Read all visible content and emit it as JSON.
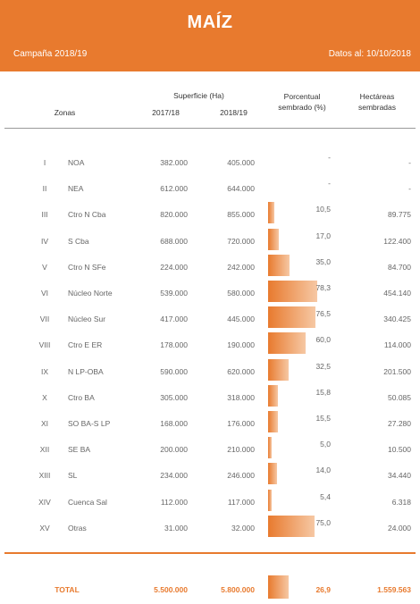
{
  "header": {
    "title": "MAÍZ",
    "campaign": "Campaña 2018/19",
    "date": "Datos al: 10/10/2018"
  },
  "columns": {
    "zonas": "Zonas",
    "superficie": "Superficie (Ha)",
    "y1": "2017/18",
    "y2": "2018/19",
    "pct_line1": "Porcentual",
    "pct_line2": "sembrado (%)",
    "ha_line1": "Hectáreas",
    "ha_line2": "sembradas"
  },
  "rows": [
    {
      "num": "I",
      "zone": "NOA",
      "s1718": "382.000",
      "s1819": "405.000",
      "pct": "-",
      "pct_value": 0,
      "ha": "-"
    },
    {
      "num": "II",
      "zone": "NEA",
      "s1718": "612.000",
      "s1819": "644.000",
      "pct": "-",
      "pct_value": 0,
      "ha": "-"
    },
    {
      "num": "III",
      "zone": "Ctro N Cba",
      "s1718": "820.000",
      "s1819": "855.000",
      "pct": "10,5",
      "pct_value": 10.5,
      "ha": "89.775"
    },
    {
      "num": "IV",
      "zone": "S Cba",
      "s1718": "688.000",
      "s1819": "720.000",
      "pct": "17,0",
      "pct_value": 17.0,
      "ha": "122.400"
    },
    {
      "num": "V",
      "zone": "Ctro N SFe",
      "s1718": "224.000",
      "s1819": "242.000",
      "pct": "35,0",
      "pct_value": 35.0,
      "ha": "84.700"
    },
    {
      "num": "VI",
      "zone": "Núcleo Norte",
      "s1718": "539.000",
      "s1819": "580.000",
      "pct": "78,3",
      "pct_value": 78.3,
      "ha": "454.140"
    },
    {
      "num": "VII",
      "zone": "Núcleo Sur",
      "s1718": "417.000",
      "s1819": "445.000",
      "pct": "76,5",
      "pct_value": 76.5,
      "ha": "340.425"
    },
    {
      "num": "VIII",
      "zone": "Ctro E ER",
      "s1718": "178.000",
      "s1819": "190.000",
      "pct": "60,0",
      "pct_value": 60.0,
      "ha": "114.000"
    },
    {
      "num": "IX",
      "zone": "N LP-OBA",
      "s1718": "590.000",
      "s1819": "620.000",
      "pct": "32,5",
      "pct_value": 32.5,
      "ha": "201.500"
    },
    {
      "num": "X",
      "zone": "Ctro BA",
      "s1718": "305.000",
      "s1819": "318.000",
      "pct": "15,8",
      "pct_value": 15.8,
      "ha": "50.085"
    },
    {
      "num": "XI",
      "zone": "SO BA-S LP",
      "s1718": "168.000",
      "s1819": "176.000",
      "pct": "15,5",
      "pct_value": 15.5,
      "ha": "27.280"
    },
    {
      "num": "XII",
      "zone": "SE BA",
      "s1718": "200.000",
      "s1819": "210.000",
      "pct": "5,0",
      "pct_value": 5.0,
      "ha": "10.500"
    },
    {
      "num": "XIII",
      "zone": "SL",
      "s1718": "234.000",
      "s1819": "246.000",
      "pct": "14,0",
      "pct_value": 14.0,
      "ha": "34.440"
    },
    {
      "num": "XIV",
      "zone": "Cuenca Sal",
      "s1718": "112.000",
      "s1819": "117.000",
      "pct": "5,4",
      "pct_value": 5.4,
      "ha": "6.318"
    },
    {
      "num": "XV",
      "zone": "Otras",
      "s1718": "31.000",
      "s1819": "32.000",
      "pct": "75,0",
      "pct_value": 75.0,
      "ha": "24.000"
    }
  ],
  "total": {
    "label": "TOTAL",
    "s1718": "5.500.000",
    "s1819": "5.800.000",
    "pct": "26,9",
    "pct_value": 26.9,
    "ha": "1.559.563"
  },
  "colors": {
    "accent": "#e87a2e"
  }
}
